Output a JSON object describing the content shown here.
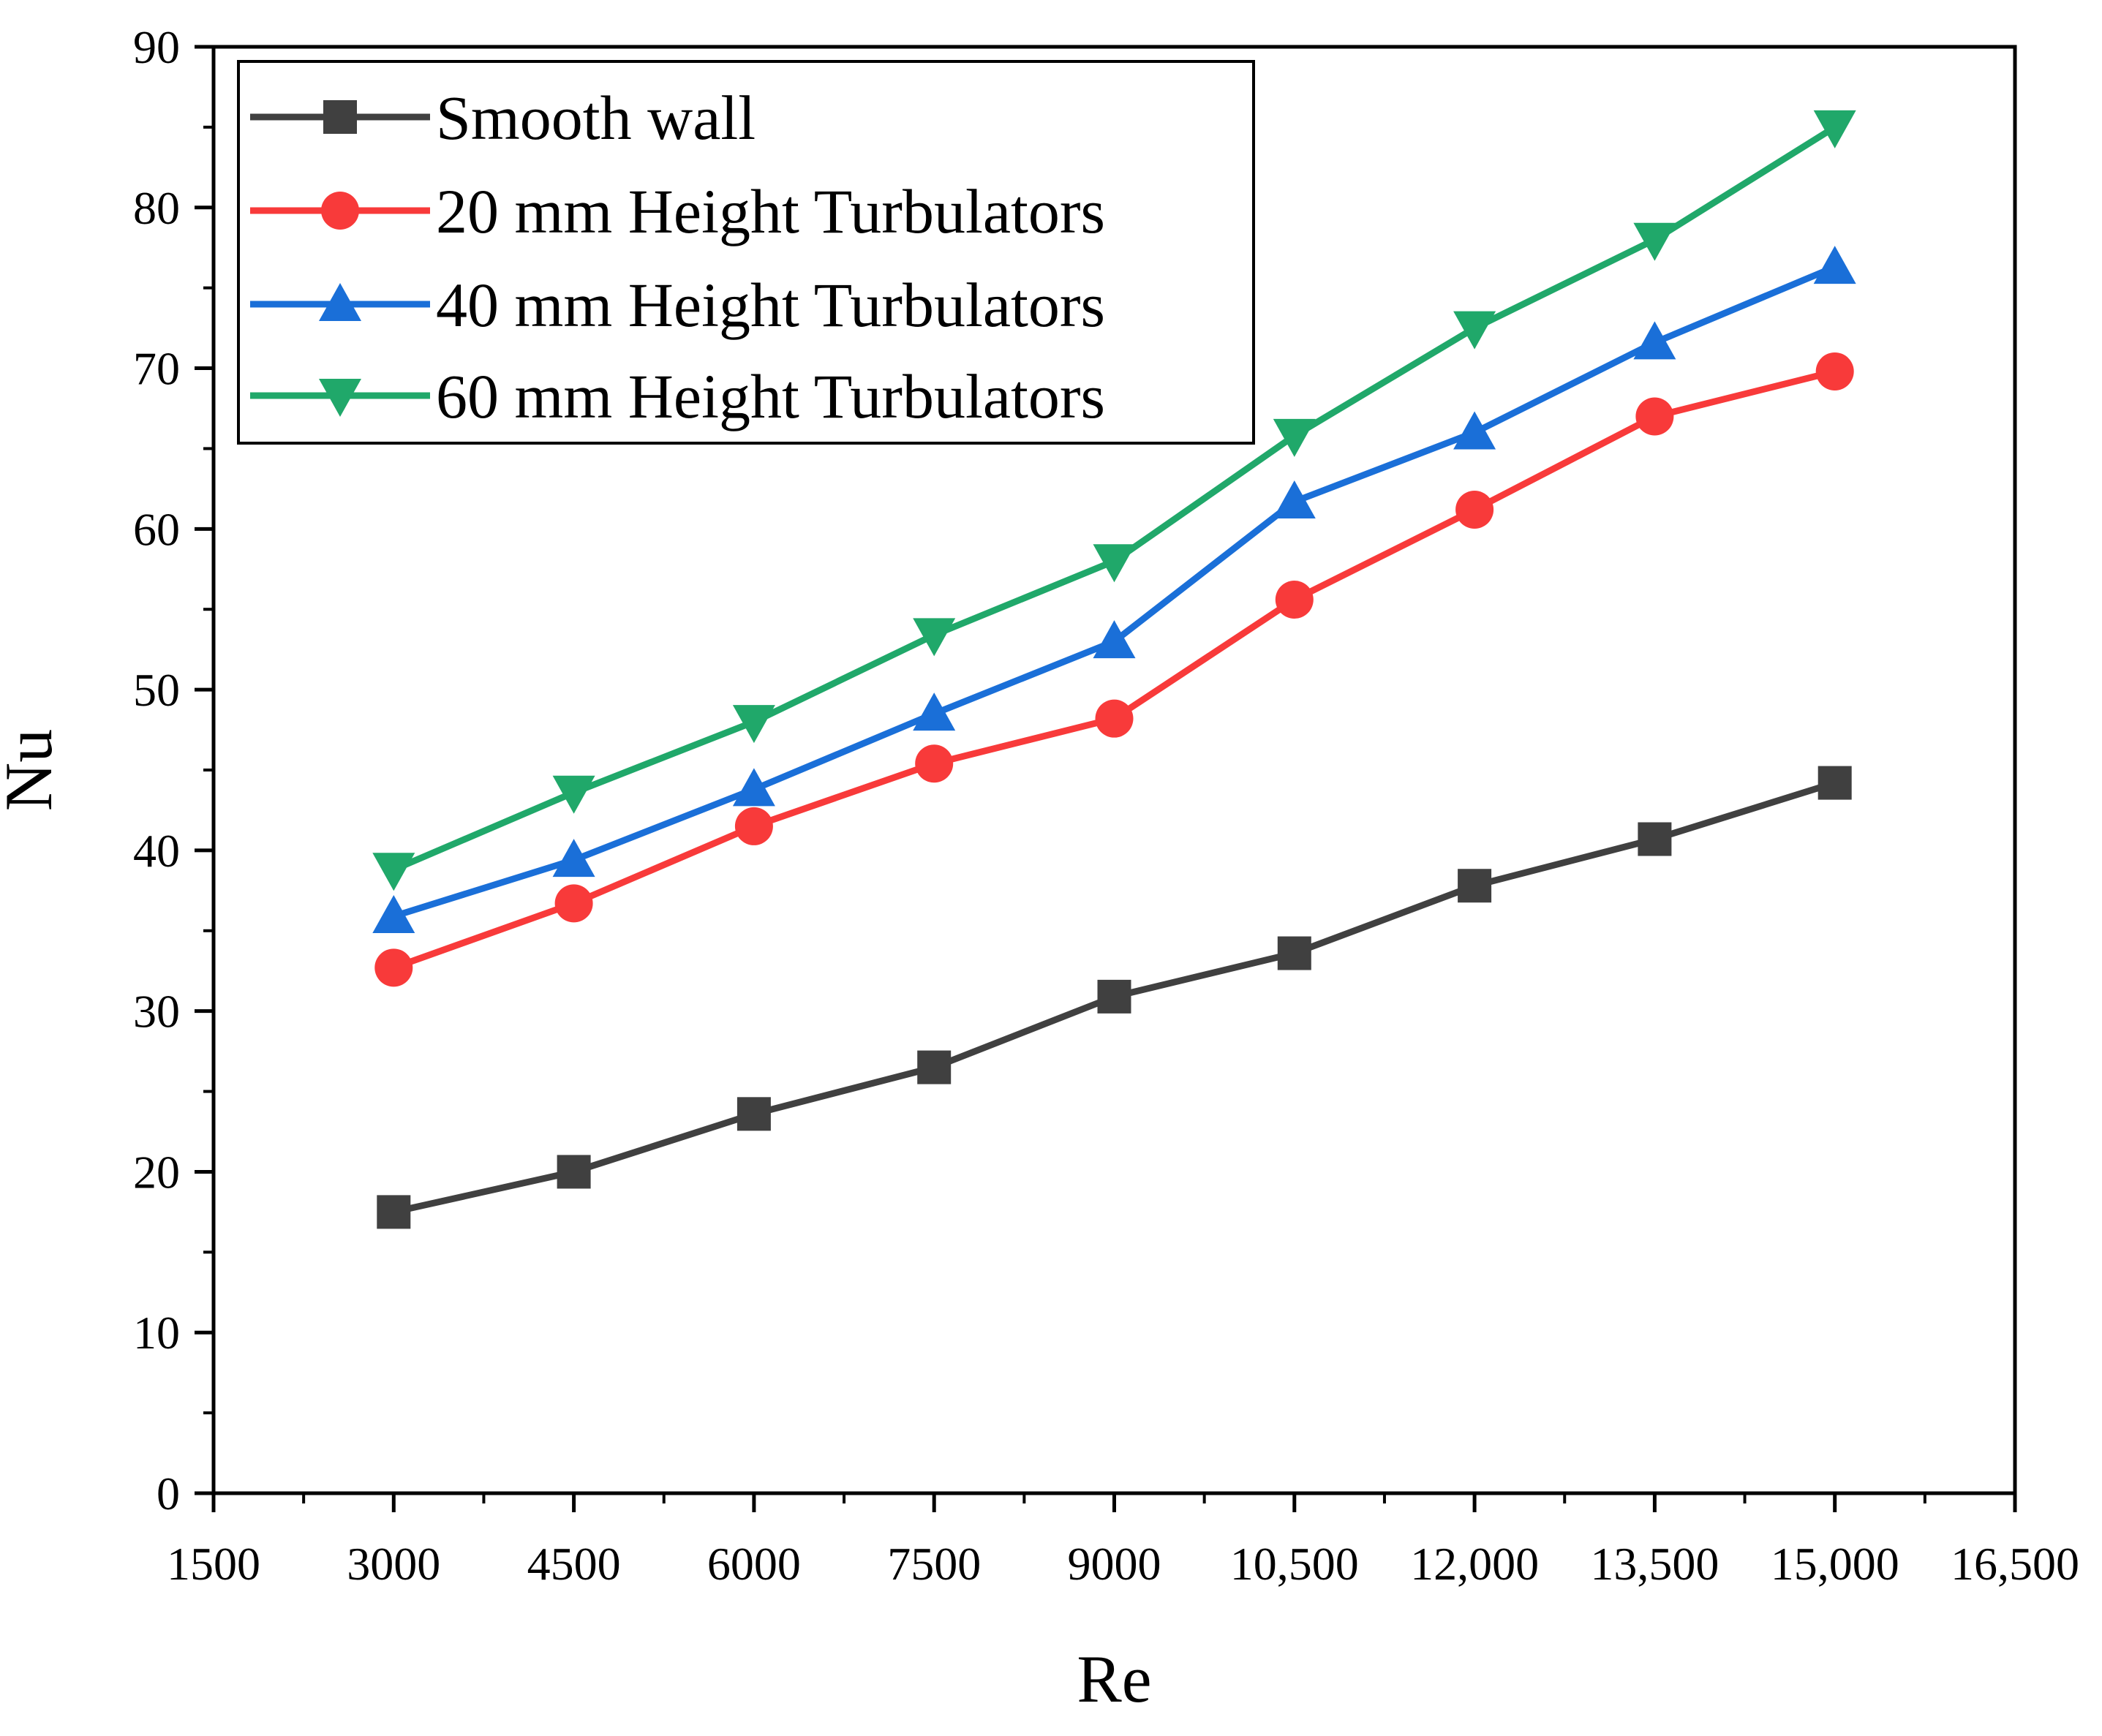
{
  "chart_data": {
    "type": "line",
    "title": "",
    "xlabel": "Re",
    "ylabel": "Nu",
    "xlim": [
      1500,
      16500
    ],
    "ylim": [
      0,
      90
    ],
    "x_ticks": [
      1500,
      3000,
      4500,
      6000,
      7500,
      9000,
      10500,
      12000,
      13500,
      15000,
      16500
    ],
    "x_tick_labels": [
      "1500",
      "3000",
      "4500",
      "6000",
      "7500",
      "9000",
      "10,500",
      "12,000",
      "13,500",
      "15,000",
      "16,500"
    ],
    "y_ticks": [
      0,
      10,
      20,
      30,
      40,
      50,
      60,
      70,
      80,
      90
    ],
    "y_tick_labels": [
      "0",
      "10",
      "20",
      "30",
      "40",
      "50",
      "60",
      "70",
      "80",
      "90"
    ],
    "x": [
      3000,
      4500,
      6000,
      7500,
      9000,
      10500,
      12000,
      13500,
      15000
    ],
    "grid": false,
    "legend_position": "top-left",
    "series": [
      {
        "name": "Smooth wall",
        "color": "#404040",
        "marker": "square",
        "values": [
          17.5,
          20.0,
          23.6,
          26.5,
          30.9,
          33.6,
          37.8,
          40.7,
          44.2
        ]
      },
      {
        "name": "20 mm Height Turbulators",
        "color": "#f83a3a",
        "marker": "circle",
        "values": [
          32.7,
          36.7,
          41.5,
          45.4,
          48.2,
          55.6,
          61.2,
          67.0,
          69.8
        ]
      },
      {
        "name": "40 mm Height Turbulators",
        "color": "#1a6fd8",
        "marker": "triangle-up",
        "values": [
          35.9,
          39.4,
          43.8,
          48.5,
          53.0,
          61.7,
          66.0,
          71.6,
          76.3
        ]
      },
      {
        "name": "60 mm Height Turbulators",
        "color": "#20a86a",
        "marker": "triangle-down",
        "values": [
          38.8,
          43.6,
          48.0,
          53.4,
          58.0,
          65.8,
          72.5,
          78.0,
          85.0
        ]
      }
    ]
  }
}
